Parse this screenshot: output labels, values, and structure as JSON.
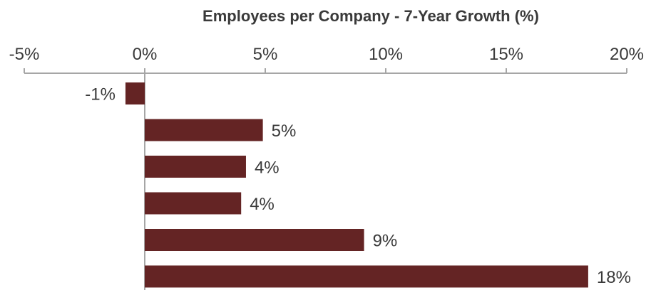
{
  "chart_data": {
    "type": "bar",
    "orientation": "horizontal",
    "title": "Employees per Company - 7-Year Growth (%)",
    "xlabel": "",
    "ylabel": "",
    "xlim": [
      -5,
      20
    ],
    "x_ticks": [
      -5,
      0,
      5,
      10,
      15,
      20
    ],
    "x_tick_labels": [
      "-5%",
      "0%",
      "5%",
      "10%",
      "15%",
      "20%"
    ],
    "x_axis_position": "top",
    "grid": false,
    "legend": "none",
    "values": [
      -0.8,
      4.9,
      4.2,
      4.0,
      9.1,
      18.4
    ],
    "data_labels": [
      "-1%",
      "5%",
      "4%",
      "4%",
      "9%",
      "18%"
    ],
    "colors": {
      "bar": "#642424",
      "axis": "#a6a6a6",
      "text": "#3a3a3a"
    }
  }
}
